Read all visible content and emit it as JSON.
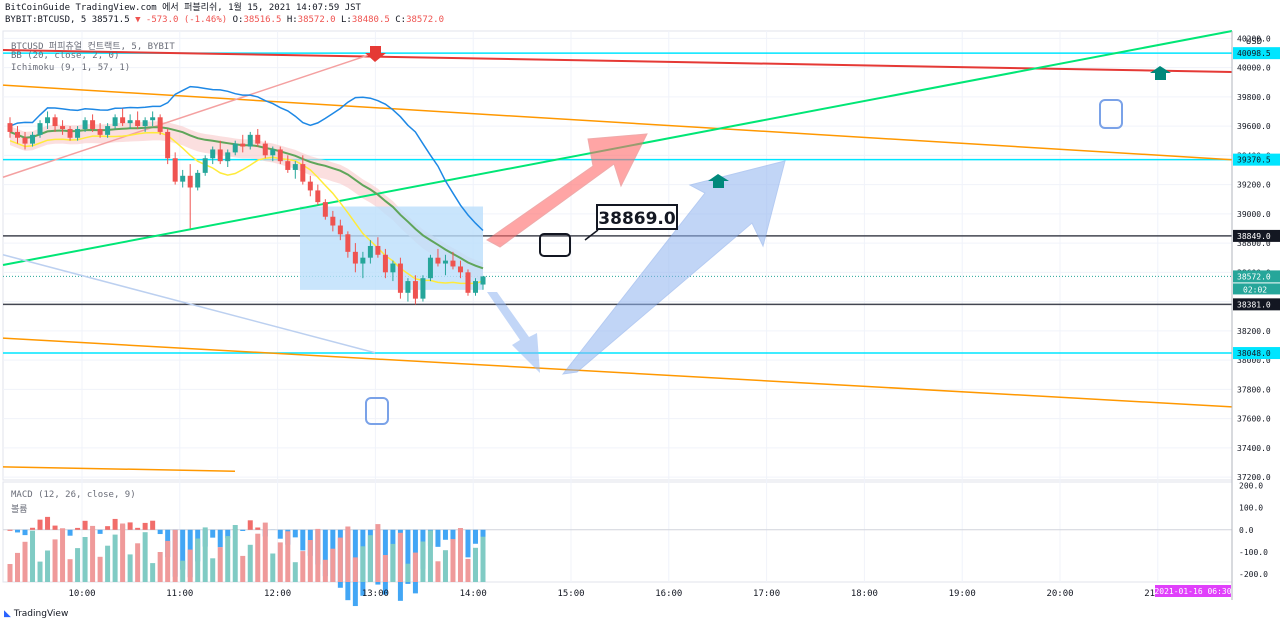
{
  "header": {
    "line1": "BitCoinGuide TradingView.com 에서 퍼블리쉬, 1월 15, 2021 14:07:59 JST",
    "symbol": "BYBIT:BTCUSD, 5",
    "last": "38571.5",
    "change": "▼ -573.0 (-1.46%)",
    "o_label": "O:",
    "o": "38516.5",
    "h_label": "H:",
    "h": "38572.0",
    "l_label": "L:",
    "l": "38480.5",
    "c_label": "C:",
    "c": "38572.0"
  },
  "indicators": {
    "main": "BTCUSD 퍼피츄얼 컨트랙트, 5, BYBIT",
    "bb": "BB (20, close, 2, 0)",
    "ichimoku": "Ichimoku (9, 1, 57, 1)",
    "macd": "MACD (12, 26, close, 9)",
    "macd_sub": "볼륨"
  },
  "annotations": {
    "callout": "38869.0"
  },
  "branding": {
    "logo": "TradingView"
  },
  "colors": {
    "up": "#26a69a",
    "down": "#ef5350",
    "bb_basis": "#5fa55a",
    "bb_band": "#1e88e5",
    "tenkan": "#ffeb3b",
    "cyan": "#00e5ff",
    "trend_red": "#e53935",
    "trend_orange": "#ff9800",
    "trend_green": "#00e676",
    "arrow_blue": "#90b4f0",
    "arrow_red": "#ff6b6b"
  },
  "chart_data": {
    "type": "candlestick",
    "currency": "USD",
    "price_ticks": [
      "40200.0",
      "40000.0",
      "39800.0",
      "39600.0",
      "39400.0",
      "39200.0",
      "39000.0",
      "38800.0",
      "38600.0",
      "38400.0",
      "38200.0",
      "38000.0",
      "37800.0",
      "37600.0",
      "37400.0",
      "37200.0"
    ],
    "price_labels": [
      {
        "value": 40098.5,
        "text": "40098.5",
        "color": "#00e5ff"
      },
      {
        "value": 39370.5,
        "text": "39370.5",
        "color": "#00e5ff"
      },
      {
        "value": 38849.0,
        "text": "38849.0",
        "color": "#131722"
      },
      {
        "value": 38572.0,
        "text": "38572.0",
        "color": "#26a69a"
      },
      {
        "value": 38381.0,
        "text": "38381.0",
        "color": "#131722"
      },
      {
        "value": 38048.0,
        "text": "38048.0",
        "color": "#00e5ff"
      }
    ],
    "countdown": "02:02",
    "time_ticks": [
      "10:00",
      "11:00",
      "12:00",
      "13:00",
      "14:00",
      "15:00",
      "16:00",
      "17:00",
      "18:00",
      "19:00",
      "20:00",
      "21:00"
    ],
    "time_label": "2021-01-16  06:30",
    "macd_ticks": [
      "200.0",
      "100.0",
      "0.0",
      "-100.0",
      "-200.0"
    ],
    "hlines": [
      40098.5,
      39370.5,
      38849.0,
      38381.0,
      38048.0
    ],
    "candles": [
      [
        39620,
        39660,
        39520,
        39560
      ],
      [
        39560,
        39600,
        39480,
        39520
      ],
      [
        39520,
        39560,
        39440,
        39480
      ],
      [
        39480,
        39560,
        39460,
        39540
      ],
      [
        39540,
        39640,
        39520,
        39620
      ],
      [
        39620,
        39700,
        39580,
        39660
      ],
      [
        39660,
        39680,
        39560,
        39600
      ],
      [
        39600,
        39640,
        39540,
        39580
      ],
      [
        39580,
        39600,
        39500,
        39520
      ],
      [
        39520,
        39600,
        39500,
        39580
      ],
      [
        39580,
        39660,
        39560,
        39640
      ],
      [
        39640,
        39680,
        39560,
        39580
      ],
      [
        39580,
        39620,
        39520,
        39540
      ],
      [
        39540,
        39620,
        39520,
        39600
      ],
      [
        39600,
        39680,
        39580,
        39660
      ],
      [
        39660,
        39720,
        39600,
        39620
      ],
      [
        39620,
        39680,
        39580,
        39640
      ],
      [
        39640,
        39700,
        39580,
        39600
      ],
      [
        39600,
        39660,
        39560,
        39640
      ],
      [
        39640,
        39700,
        39600,
        39660
      ],
      [
        39660,
        39680,
        39540,
        39560
      ],
      [
        39560,
        39580,
        39340,
        39380
      ],
      [
        39380,
        39420,
        39200,
        39220
      ],
      [
        39220,
        39300,
        39180,
        39260
      ],
      [
        39260,
        39340,
        38900,
        39180
      ],
      [
        39180,
        39300,
        39160,
        39280
      ],
      [
        39280,
        39400,
        39260,
        39380
      ],
      [
        39380,
        39460,
        39340,
        39440
      ],
      [
        39440,
        39500,
        39340,
        39360
      ],
      [
        39360,
        39440,
        39320,
        39420
      ],
      [
        39420,
        39500,
        39400,
        39480
      ],
      [
        39480,
        39540,
        39420,
        39460
      ],
      [
        39460,
        39560,
        39440,
        39540
      ],
      [
        39540,
        39580,
        39460,
        39480
      ],
      [
        39480,
        39500,
        39380,
        39400
      ],
      [
        39400,
        39460,
        39360,
        39440
      ],
      [
        39440,
        39460,
        39340,
        39360
      ],
      [
        39360,
        39400,
        39280,
        39300
      ],
      [
        39300,
        39360,
        39240,
        39340
      ],
      [
        39340,
        39400,
        39200,
        39220
      ],
      [
        39220,
        39260,
        39120,
        39160
      ],
      [
        39160,
        39200,
        39060,
        39080
      ],
      [
        39080,
        39100,
        38960,
        38980
      ],
      [
        38980,
        39020,
        38880,
        38920
      ],
      [
        38920,
        38960,
        38820,
        38860
      ],
      [
        38860,
        38880,
        38700,
        38740
      ],
      [
        38740,
        38800,
        38600,
        38660
      ],
      [
        38660,
        38740,
        38560,
        38700
      ],
      [
        38700,
        38820,
        38660,
        38780
      ],
      [
        38780,
        38840,
        38700,
        38720
      ],
      [
        38720,
        38760,
        38560,
        38600
      ],
      [
        38600,
        38680,
        38540,
        38660
      ],
      [
        38660,
        38700,
        38420,
        38460
      ],
      [
        38460,
        38560,
        38400,
        38540
      ],
      [
        38540,
        38580,
        38380,
        38420
      ],
      [
        38420,
        38580,
        38400,
        38560
      ],
      [
        38560,
        38720,
        38540,
        38700
      ],
      [
        38700,
        38760,
        38640,
        38660
      ],
      [
        38660,
        38720,
        38580,
        38680
      ],
      [
        38680,
        38740,
        38620,
        38640
      ],
      [
        38640,
        38680,
        38560,
        38600
      ],
      [
        38600,
        38620,
        38440,
        38460
      ],
      [
        38460,
        38560,
        38440,
        38540
      ],
      [
        38516.5,
        38572,
        38480.5,
        38572
      ]
    ]
  }
}
